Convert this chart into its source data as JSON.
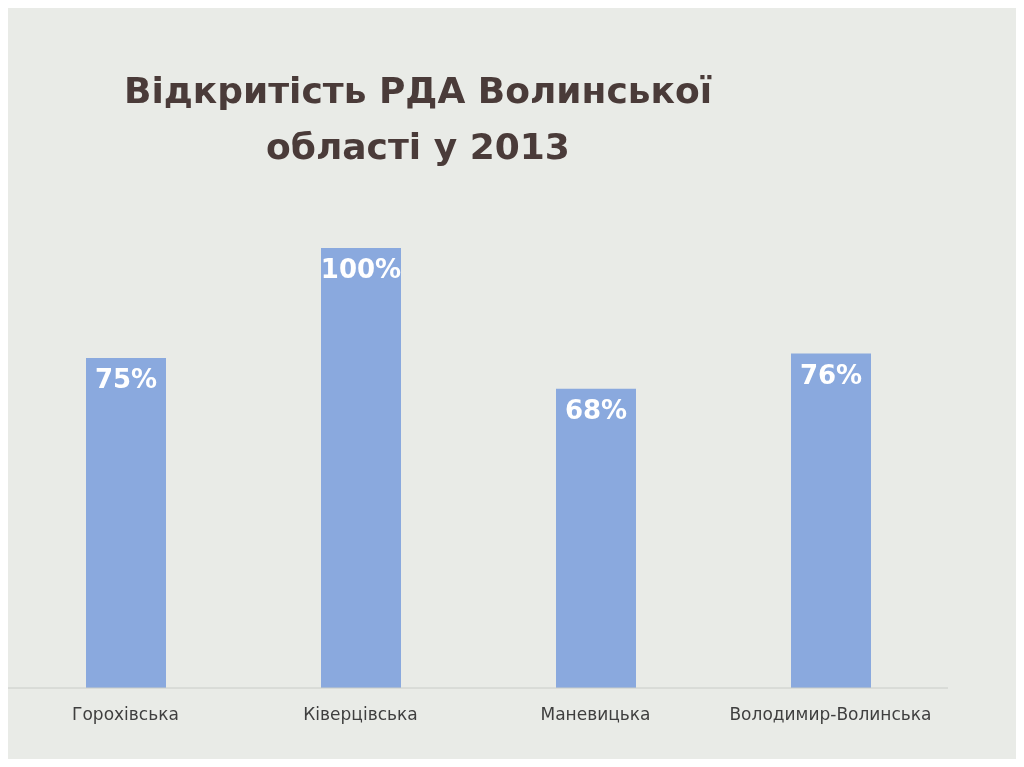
{
  "chart_data": {
    "type": "bar",
    "title": "Відкритість РДА Волинської області у 2013",
    "categories": [
      "Горохівська",
      "Ківерцівська",
      "Маневицька",
      "Володимир-Волинська"
    ],
    "values": [
      75,
      100,
      68,
      76
    ],
    "color": "#8aa9de",
    "value_labels": [
      "75%",
      "100%",
      "68%",
      "76%"
    ]
  }
}
